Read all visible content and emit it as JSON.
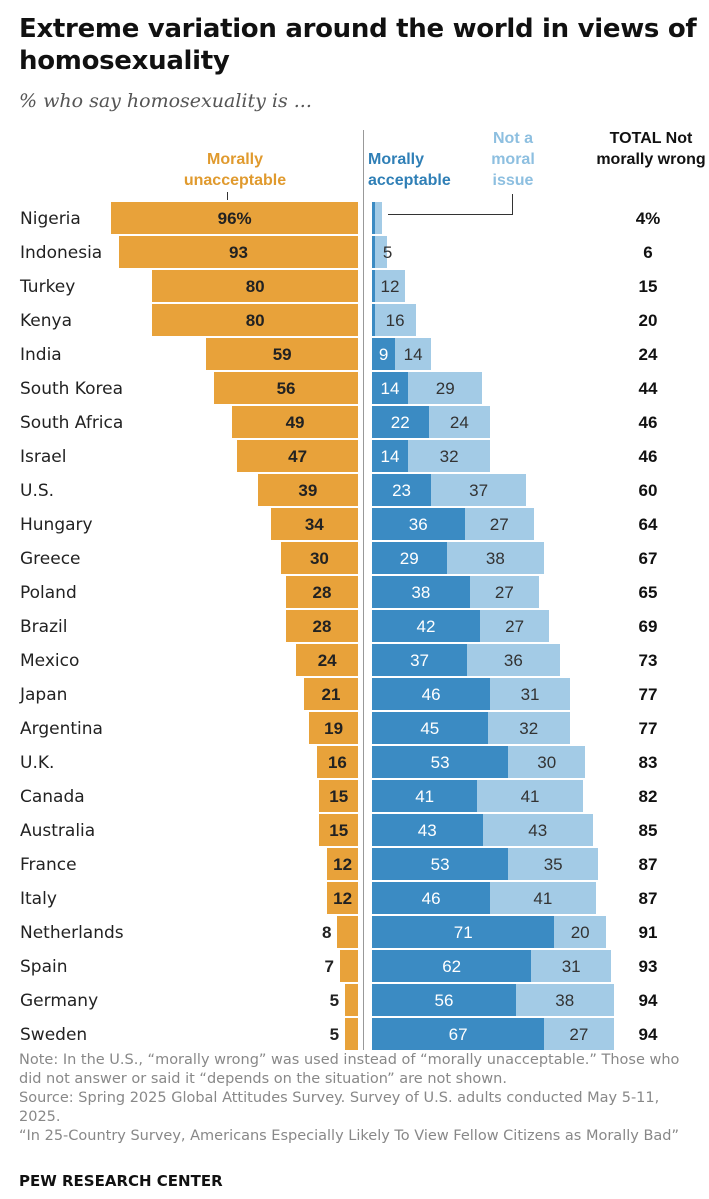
{
  "title": "Extreme variation around the world in views of homosexuality",
  "subtitle": "% who say homosexuality is ...",
  "headers": {
    "unacceptable": "Morally unacceptable",
    "acceptable": "Morally acceptable",
    "not_moral": "Not a moral issue",
    "total": "TOTAL Not morally wrong"
  },
  "colors": {
    "unacceptable": "#e8a23a",
    "acceptable": "#3b8bc3",
    "not_moral": "#a3cbe6"
  },
  "chart_data": {
    "type": "bar",
    "title": "Extreme variation around the world in views of homosexuality",
    "subtitle": "% who say homosexuality is ...",
    "categories": [
      "Nigeria",
      "Indonesia",
      "Turkey",
      "Kenya",
      "India",
      "South Korea",
      "South Africa",
      "Israel",
      "U.S.",
      "Hungary",
      "Greece",
      "Poland",
      "Brazil",
      "Mexico",
      "Japan",
      "Argentina",
      "U.K.",
      "Canada",
      "Australia",
      "France",
      "Italy",
      "Netherlands",
      "Spain",
      "Germany",
      "Sweden"
    ],
    "series": [
      {
        "name": "Morally unacceptable",
        "values": [
          96,
          93,
          80,
          80,
          59,
          56,
          49,
          47,
          39,
          34,
          30,
          28,
          28,
          24,
          21,
          19,
          16,
          15,
          15,
          12,
          12,
          8,
          7,
          5,
          5
        ],
        "labels": [
          "96%",
          "93",
          "80",
          "80",
          "59",
          "56",
          "49",
          "47",
          "39",
          "34",
          "30",
          "28",
          "28",
          "24",
          "21",
          "19",
          "16",
          "15",
          "15",
          "12",
          "12",
          "8",
          "7",
          "5",
          "5"
        ]
      },
      {
        "name": "Morally acceptable",
        "values": [
          1,
          1,
          1,
          1,
          9,
          14,
          22,
          14,
          23,
          36,
          29,
          38,
          42,
          37,
          46,
          45,
          53,
          41,
          43,
          53,
          46,
          71,
          62,
          56,
          67
        ],
        "labels": [
          "",
          "",
          "",
          "",
          "9",
          "14",
          "22",
          "14",
          "23",
          "36",
          "29",
          "38",
          "42",
          "37",
          "46",
          "45",
          "53",
          "41",
          "43",
          "53",
          "46",
          "71",
          "62",
          "56",
          "67"
        ]
      },
      {
        "name": "Not a moral issue",
        "values": [
          3,
          5,
          12,
          16,
          14,
          29,
          24,
          32,
          37,
          27,
          38,
          27,
          27,
          36,
          31,
          32,
          30,
          41,
          43,
          35,
          41,
          20,
          31,
          38,
          27
        ],
        "labels": [
          "",
          "5",
          "12",
          "16",
          "14",
          "29",
          "24",
          "32",
          "37",
          "27",
          "38",
          "27",
          "27",
          "36",
          "31",
          "32",
          "30",
          "41",
          "43",
          "35",
          "41",
          "20",
          "31",
          "38",
          "27"
        ]
      },
      {
        "name": "TOTAL Not morally wrong",
        "values": [
          4,
          6,
          15,
          20,
          24,
          44,
          46,
          46,
          60,
          64,
          67,
          65,
          69,
          73,
          77,
          77,
          83,
          82,
          85,
          87,
          87,
          91,
          93,
          94,
          94
        ],
        "labels": [
          "4%",
          "6",
          "15",
          "20",
          "24",
          "44",
          "46",
          "46",
          "60",
          "64",
          "67",
          "65",
          "69",
          "73",
          "77",
          "77",
          "83",
          "82",
          "85",
          "87",
          "87",
          "91",
          "93",
          "94",
          "94"
        ]
      }
    ],
    "xlim": [
      0,
      100
    ]
  },
  "notes": [
    "Note: In the U.S., “morally wrong” was used instead of “morally unacceptable.” Those who did not answer or said it “depends on the situation” are not shown.",
    "Source: Spring 2025 Global Attitudes Survey. Survey of U.S. adults conducted May 5-11, 2025.",
    "“In 25-Country Survey, Americans Especially Likely To View Fellow Citizens as Morally Bad”"
  ],
  "brand": "PEW RESEARCH CENTER"
}
